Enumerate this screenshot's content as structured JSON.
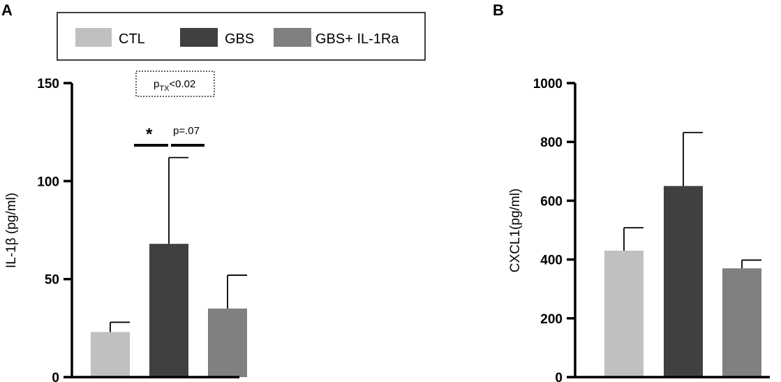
{
  "chart_data": [
    {
      "panel": "A",
      "type": "bar",
      "categories": [
        "CTL",
        "GBS",
        "GBS+ IL-1Ra"
      ],
      "values": [
        23,
        68,
        35
      ],
      "error_upper": [
        28,
        112,
        52
      ],
      "colors": [
        "#c0c0c0",
        "#404040",
        "#808080"
      ],
      "ylabel": "IL-1β (pg/ml)",
      "ylim": [
        0,
        150
      ],
      "yticks": [
        0,
        50,
        100,
        150
      ],
      "annotations": {
        "box_label_p": "p",
        "box_label_sub": "TX",
        "box_label_rest": "<0.02",
        "star": "*",
        "pvalue": "p=.07"
      }
    },
    {
      "panel": "B",
      "type": "bar",
      "categories": [
        "CTL",
        "GBS",
        "GBS+ IL-1Ra"
      ],
      "values": [
        430,
        650,
        370
      ],
      "error_upper": [
        508,
        832,
        398
      ],
      "colors": [
        "#c0c0c0",
        "#404040",
        "#808080"
      ],
      "ylabel": "CXCL1(pg/ml)",
      "ylim": [
        0,
        1000
      ],
      "yticks": [
        0,
        200,
        400,
        600,
        800,
        1000
      ]
    }
  ],
  "legend": {
    "placement": "top",
    "items": [
      {
        "label": "CTL",
        "color": "#c0c0c0"
      },
      {
        "label": "GBS",
        "color": "#404040"
      },
      {
        "label": "GBS+ IL-1Ra",
        "color": "#808080"
      }
    ]
  }
}
